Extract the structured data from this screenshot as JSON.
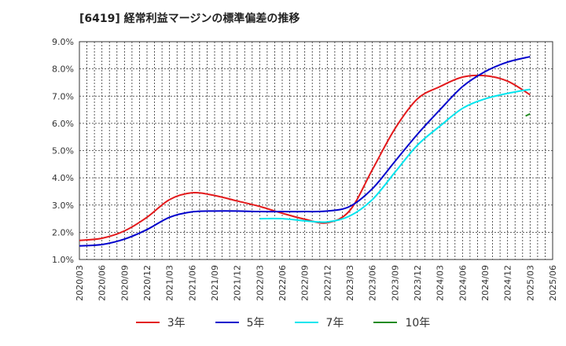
{
  "chart_data": {
    "type": "line",
    "title": "[6419]  経常利益マージンの標準偏差の推移",
    "xlabel": "",
    "ylabel": "",
    "ylim": [
      1.0,
      9.0
    ],
    "yticks": [
      "1.0%",
      "2.0%",
      "3.0%",
      "4.0%",
      "5.0%",
      "6.0%",
      "7.0%",
      "8.0%",
      "9.0%"
    ],
    "x": [
      "2020/03",
      "2020/06",
      "2020/09",
      "2020/12",
      "2021/03",
      "2021/06",
      "2021/09",
      "2021/12",
      "2022/03",
      "2022/06",
      "2022/09",
      "2022/12",
      "2023/03",
      "2023/06",
      "2023/09",
      "2023/12",
      "2024/03",
      "2024/06",
      "2024/09",
      "2024/12",
      "2025/03",
      "2025/06"
    ],
    "grid": true,
    "legend_position": "bottom",
    "series": [
      {
        "name": "3年",
        "color": "#e31a1c",
        "values": [
          1.7,
          1.78,
          2.05,
          2.55,
          3.2,
          3.45,
          3.35,
          3.15,
          2.95,
          2.7,
          2.48,
          2.35,
          2.8,
          4.3,
          5.8,
          6.9,
          7.35,
          7.7,
          7.75,
          7.55,
          7.05,
          null
        ]
      },
      {
        "name": "5年",
        "color": "#0000cc",
        "values": [
          1.5,
          1.55,
          1.75,
          2.1,
          2.55,
          2.75,
          2.78,
          2.78,
          2.76,
          2.76,
          2.76,
          2.78,
          2.95,
          3.6,
          4.6,
          5.6,
          6.5,
          7.35,
          7.9,
          8.25,
          8.45,
          null
        ]
      },
      {
        "name": "7年",
        "color": "#00e5ee",
        "values": [
          null,
          null,
          null,
          null,
          null,
          null,
          null,
          null,
          2.5,
          2.5,
          2.42,
          2.38,
          2.6,
          3.2,
          4.2,
          5.2,
          5.9,
          6.55,
          6.9,
          7.1,
          7.25,
          null
        ]
      },
      {
        "name": "10年",
        "color": "#228b22",
        "values": [
          null,
          null,
          null,
          null,
          null,
          null,
          null,
          null,
          null,
          null,
          null,
          null,
          null,
          null,
          null,
          null,
          null,
          null,
          null,
          null,
          6.35,
          null
        ],
        "segment": [
          {
            "x": 19.8,
            "y": 6.27
          },
          {
            "x": 20.0,
            "y": 6.35
          }
        ]
      }
    ]
  }
}
